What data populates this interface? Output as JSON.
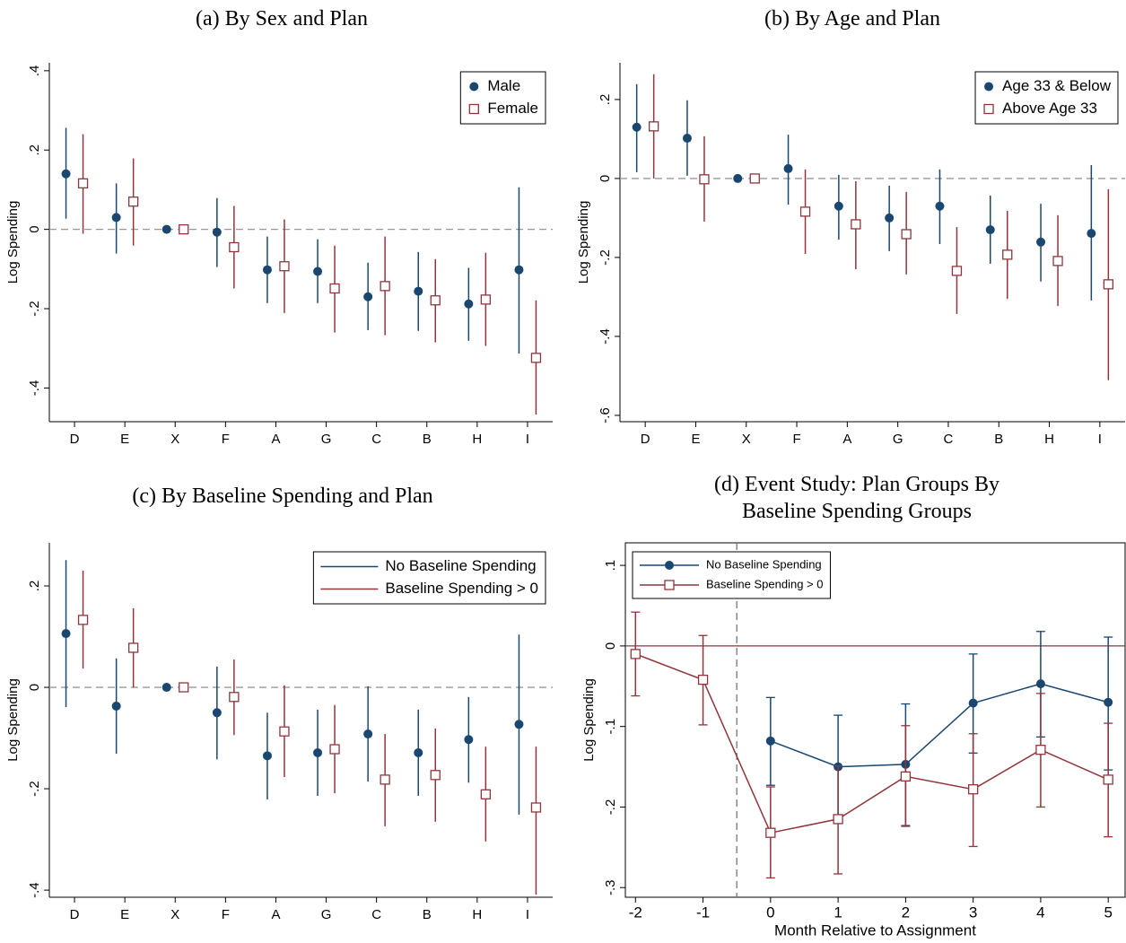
{
  "chart_data": [
    {
      "type": "pointrange",
      "title": "(a) By Sex and Plan",
      "ylabel": "Log Spending",
      "categories": [
        "D",
        "E",
        "X",
        "F",
        "A",
        "G",
        "C",
        "B",
        "H",
        "I"
      ],
      "ylim": [
        -0.485,
        0.42
      ],
      "yticks": [
        {
          "value": -0.4,
          "label": "-.4"
        },
        {
          "value": -0.2,
          "label": "-.2"
        },
        0,
        {
          "value": 0.2,
          "label": ".2"
        },
        {
          "value": 0.4,
          "label": ".4"
        }
      ],
      "hline": 0,
      "hline_style": "dashed",
      "hline_color": "#999999",
      "frame": false,
      "legend": "upper right",
      "legend_style": "marker",
      "series": [
        {
          "name": "Male",
          "color": "#1a476f",
          "marker": "circle",
          "values": [
            0.14,
            0.03,
            0,
            -0.007,
            -0.102,
            -0.106,
            -0.17,
            -0.156,
            -0.188,
            -0.102
          ],
          "lower": [
            0.027,
            -0.061,
            0,
            -0.095,
            -0.186,
            -0.186,
            -0.254,
            -0.256,
            -0.281,
            -0.313
          ],
          "upper": [
            0.256,
            0.116,
            0,
            0.079,
            -0.018,
            -0.025,
            -0.084,
            -0.057,
            -0.097,
            0.106
          ]
        },
        {
          "name": "Female",
          "color": "#90353b",
          "marker": "square",
          "values": [
            0.116,
            0.07,
            0,
            -0.045,
            -0.093,
            -0.149,
            -0.143,
            -0.179,
            -0.177,
            -0.324
          ],
          "lower": [
            -0.011,
            -0.041,
            0,
            -0.149,
            -0.211,
            -0.26,
            -0.267,
            -0.285,
            -0.294,
            -0.467
          ],
          "upper": [
            0.24,
            0.179,
            0,
            0.059,
            0.025,
            -0.041,
            -0.018,
            -0.075,
            -0.059,
            -0.179
          ]
        }
      ]
    },
    {
      "type": "pointrange",
      "title": "(b) By Age and Plan",
      "ylabel": "Log Spending",
      "categories": [
        "D",
        "E",
        "X",
        "F",
        "A",
        "G",
        "C",
        "B",
        "H",
        "I"
      ],
      "ylim": [
        -0.616,
        0.293
      ],
      "yticks": [
        {
          "value": -0.6,
          "label": "-.6"
        },
        {
          "value": -0.4,
          "label": "-.4"
        },
        {
          "value": -0.2,
          "label": "-.2"
        },
        0,
        {
          "value": 0.2,
          "label": ".2"
        }
      ],
      "hline": 0,
      "hline_style": "dashed",
      "hline_color": "#999999",
      "frame": false,
      "legend": "upper right",
      "legend_style": "marker",
      "series": [
        {
          "name": "Age 33 & Below",
          "color": "#1a476f",
          "marker": "circle",
          "values": [
            0.13,
            0.102,
            0,
            0.025,
            -0.07,
            -0.1,
            -0.07,
            -0.13,
            -0.161,
            -0.139
          ],
          "lower": [
            0.016,
            0.007,
            0,
            -0.066,
            -0.155,
            -0.184,
            -0.166,
            -0.216,
            -0.261,
            -0.309
          ],
          "upper": [
            0.239,
            0.198,
            0,
            0.111,
            0.009,
            -0.018,
            0.023,
            -0.043,
            -0.064,
            0.034
          ]
        },
        {
          "name": "Above Age 33",
          "color": "#90353b",
          "marker": "square",
          "values": [
            0.132,
            -0.002,
            0,
            -0.084,
            -0.116,
            -0.141,
            -0.234,
            -0.193,
            -0.209,
            -0.268
          ],
          "lower": [
            0,
            -0.109,
            0,
            -0.191,
            -0.23,
            -0.243,
            -0.343,
            -0.305,
            -0.323,
            -0.511
          ],
          "upper": [
            0.264,
            0.107,
            0,
            0.023,
            -0.007,
            -0.034,
            -0.123,
            -0.082,
            -0.093,
            -0.027
          ]
        }
      ]
    },
    {
      "type": "pointrange",
      "title": "(c) By Baseline Spending and Plan",
      "ylabel": "Log Spending",
      "categories": [
        "D",
        "E",
        "X",
        "F",
        "A",
        "G",
        "C",
        "B",
        "H",
        "I"
      ],
      "ylim": [
        -0.414,
        0.285
      ],
      "yticks": [
        {
          "value": -0.4,
          "label": "-.4"
        },
        {
          "value": -0.2,
          "label": "-.2"
        },
        0,
        {
          "value": 0.2,
          "label": ".2"
        }
      ],
      "hline": 0,
      "hline_style": "dashed",
      "hline_color": "#999999",
      "frame": false,
      "legend": "upper right",
      "legend_style": "line",
      "series": [
        {
          "name": "No Baseline Spending",
          "color": "#1a476f",
          "marker": "circle",
          "values": [
            0.106,
            -0.037,
            0,
            -0.05,
            -0.135,
            -0.129,
            -0.092,
            -0.129,
            -0.103,
            -0.073
          ],
          "lower": [
            -0.039,
            -0.131,
            0,
            -0.142,
            -0.221,
            -0.214,
            -0.186,
            -0.214,
            -0.188,
            -0.251
          ],
          "upper": [
            0.251,
            0.057,
            0,
            0.041,
            -0.05,
            -0.044,
            0.002,
            -0.044,
            -0.019,
            0.104
          ]
        },
        {
          "name": "Baseline Spending > 0",
          "color": "#90353b",
          "marker": "square",
          "values": [
            0.133,
            0.078,
            0,
            -0.019,
            -0.087,
            -0.122,
            -0.182,
            -0.173,
            -0.211,
            -0.237
          ],
          "lower": [
            0.037,
            0,
            0,
            -0.094,
            -0.177,
            -0.209,
            -0.274,
            -0.265,
            -0.304,
            -0.409
          ],
          "upper": [
            0.23,
            0.156,
            0,
            0.055,
            0.004,
            -0.035,
            -0.092,
            -0.081,
            -0.117,
            -0.117
          ]
        }
      ]
    },
    {
      "type": "line",
      "title": "(d) Event Study: Plan Groups By Baseline Spending Groups",
      "ylabel": "Log Spending",
      "xlabel": "Month Relative to Assignment",
      "x": [
        -2,
        -1,
        0,
        1,
        2,
        3,
        4,
        5
      ],
      "xlim": [
        -2.15,
        5.25
      ],
      "xticks": [
        -2,
        -1,
        0,
        1,
        2,
        3,
        4,
        5
      ],
      "ylim": [
        -0.312,
        0.128
      ],
      "yticks": [
        {
          "value": -0.3,
          "label": "-.3"
        },
        {
          "value": -0.2,
          "label": "-.2"
        },
        {
          "value": -0.1,
          "label": "-.1"
        },
        0,
        {
          "value": 0.1,
          "label": ".1"
        }
      ],
      "hline": 0,
      "hline_style": "solid",
      "hline_color": "#90353b",
      "vline": -0.5,
      "frame": true,
      "caps": true,
      "legend": "upper left",
      "legend_style": "both",
      "series": [
        {
          "name": "No Baseline Spending",
          "color": "#1a476f",
          "marker": "circle",
          "values": [
            null,
            null,
            -0.118,
            -0.15,
            -0.147,
            -0.071,
            -0.047,
            -0.07
          ],
          "lower": [
            null,
            null,
            -0.173,
            -0.214,
            -0.223,
            -0.133,
            -0.113,
            -0.154
          ],
          "upper": [
            null,
            null,
            -0.064,
            -0.086,
            -0.072,
            -0.01,
            0.018,
            0.011
          ]
        },
        {
          "name": "Baseline Spending > 0",
          "color": "#90353b",
          "marker": "square",
          "values": [
            -0.01,
            -0.042,
            -0.232,
            -0.215,
            -0.162,
            -0.178,
            -0.129,
            -0.166
          ],
          "lower": [
            -0.062,
            -0.098,
            -0.288,
            -0.283,
            -0.224,
            -0.249,
            -0.2,
            -0.237
          ],
          "upper": [
            0.042,
            0.013,
            -0.175,
            -0.149,
            -0.099,
            -0.109,
            -0.059,
            -0.096
          ]
        }
      ]
    }
  ]
}
